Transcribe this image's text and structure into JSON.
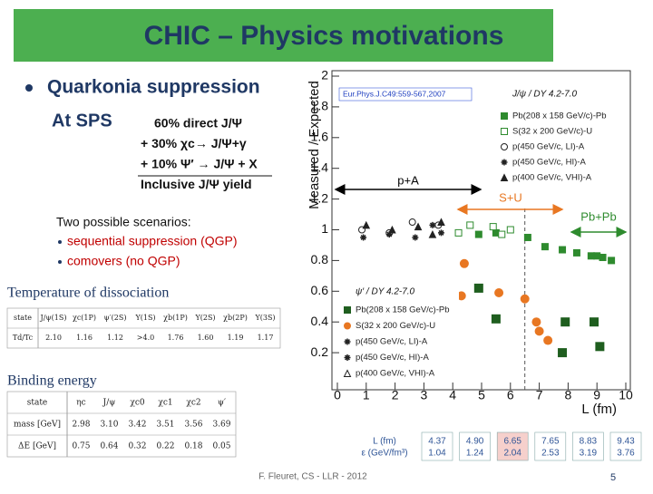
{
  "title": "CHIC – Physics motivations",
  "bullet": "Quarkonia suppression",
  "subheading": "At SPS",
  "feed_down": [
    "60% direct J/Ψ",
    "+ 30% χc→ J/Ψ+γ",
    "+ 10% Ψ′ → J/Ψ + X",
    "Inclusive J/Ψ yield"
  ],
  "scenarios": {
    "heading": "Two possible scenarios:",
    "items": [
      "sequential suppression (QGP)",
      "comovers (no QGP)"
    ]
  },
  "dissociation": {
    "heading": "Temperature of dissociation",
    "rows": [
      [
        "state",
        "J/ψ(1S)",
        "χc(1P)",
        "ψ′(2S)",
        "Υ(1S)",
        "χb(1P)",
        "Υ(2S)",
        "χb(2P)",
        "Υ(3S)"
      ],
      [
        "Td/Tc",
        "2.10",
        "1.16",
        "1.12",
        ">4.0",
        "1.76",
        "1.60",
        "1.19",
        "1.17"
      ]
    ]
  },
  "binding": {
    "heading": "Binding energy",
    "rows": [
      [
        "state",
        "ηc",
        "J/ψ",
        "χc0",
        "χc1",
        "χc2",
        "ψ′"
      ],
      [
        "mass [GeV]",
        "2.98",
        "3.10",
        "3.42",
        "3.51",
        "3.56",
        "3.69"
      ],
      [
        "ΔE [GeV]",
        "0.75",
        "0.64",
        "0.32",
        "0.22",
        "0.18",
        "0.05"
      ]
    ]
  },
  "plot": {
    "type": "scatter",
    "y_label": "Measured / Expected",
    "x_label": "L (fm)",
    "reference": "Eur.Phys.J.C49:559-567,2007",
    "xlim": [
      0,
      10
    ],
    "ylim": [
      0,
      2
    ],
    "xticks": [
      0,
      1,
      2,
      3,
      4,
      5,
      6,
      7,
      8,
      9,
      10
    ],
    "yticks": [
      0.2,
      0.4,
      0.6,
      0.8,
      1,
      1.2,
      1.4,
      1.6,
      1.8,
      2
    ],
    "annotations": [
      {
        "text": "p+A",
        "color": "#000000"
      },
      {
        "text": "S+U",
        "color": "#e87722"
      },
      {
        "text": "Pb+Pb",
        "color": "#2e8b2e"
      }
    ],
    "panels": [
      {
        "legend_title": "J/ψ / DY 4.2-7.0",
        "series": [
          {
            "name": "Pb(208 x 158 GeV/c)-Pb",
            "marker": "square",
            "color": "#2e8b2e",
            "x": [
              4.9,
              5.5,
              6.6,
              7.2,
              7.8,
              8.3,
              8.8,
              9.0,
              9.2,
              9.5
            ],
            "y": [
              0.97,
              0.98,
              0.95,
              0.89,
              0.87,
              0.85,
              0.83,
              0.83,
              0.82,
              0.8
            ]
          },
          {
            "name": "S(32 x 200 GeV/c)-U",
            "marker": "open-square",
            "color": "#2e8b2e",
            "x": [
              4.2,
              4.6,
              5.4,
              5.7,
              6.0
            ],
            "y": [
              0.98,
              1.03,
              1.02,
              0.97,
              1.0
            ]
          },
          {
            "name": "p(450 GeV/c, LI)-A",
            "marker": "open-circle",
            "color": "#222222",
            "x": [
              0.85,
              1.8,
              2.6,
              3.5
            ],
            "y": [
              1.0,
              0.98,
              1.05,
              1.03
            ]
          },
          {
            "name": "p(450 GeV/c, HI)-A",
            "marker": "star",
            "color": "#222222",
            "x": [
              0.9,
              1.8,
              2.7,
              3.3,
              3.6
            ],
            "y": [
              0.95,
              0.97,
              0.95,
              1.03,
              0.98
            ]
          },
          {
            "name": "p(400 GeV/c, VHI)-A",
            "marker": "triangle",
            "color": "#222222",
            "x": [
              1.0,
              1.9,
              2.8,
              3.3,
              3.6
            ],
            "y": [
              1.03,
              1.0,
              1.02,
              0.97,
              1.05
            ]
          }
        ]
      },
      {
        "legend_title": "ψ′ / DY 4.2-7.0",
        "series": [
          {
            "name": "Pb(208 x 158 GeV/c)-Pb",
            "marker": "square",
            "color": "#1f5e1f",
            "x": [
              4.9,
              5.5,
              7.8,
              7.9,
              8.9,
              9.1
            ],
            "y": [
              0.62,
              0.42,
              0.2,
              0.4,
              0.4,
              0.24
            ]
          },
          {
            "name": "S(32 x 200 GeV/c)-U",
            "marker": "circle",
            "color": "#e87722",
            "x": [
              4.3,
              4.4,
              5.6,
              6.5,
              7.0,
              7.3,
              6.9
            ],
            "y": [
              0.57,
              0.78,
              0.59,
              0.55,
              0.34,
              0.28,
              0.4
            ]
          },
          {
            "name": "p(450 GeV/c, LI)-A",
            "marker": "star",
            "color": "#222222"
          },
          {
            "name": "p(450 GeV/c, HI)-A",
            "marker": "star",
            "color": "#222222"
          },
          {
            "name": "p(400 GeV/c, VHI)-A",
            "marker": "open-triangle",
            "color": "#222222"
          }
        ]
      }
    ]
  },
  "conditions": {
    "labels": [
      "L (fm)",
      "ε (GeV/fm³)"
    ],
    "columns": [
      {
        "values": [
          "4.37",
          "1.04"
        ]
      },
      {
        "values": [
          "4.90",
          "1.24"
        ]
      },
      {
        "values": [
          "6.65",
          "2.04"
        ],
        "fill": "#f6d0cc"
      },
      {
        "values": [
          "7.65",
          "2.53"
        ]
      },
      {
        "values": [
          "8.83",
          "3.19"
        ]
      },
      {
        "values": [
          "9.43",
          "3.76"
        ]
      }
    ]
  },
  "footer": "F. Fleuret, CS - LLR - 2012",
  "page": "5"
}
